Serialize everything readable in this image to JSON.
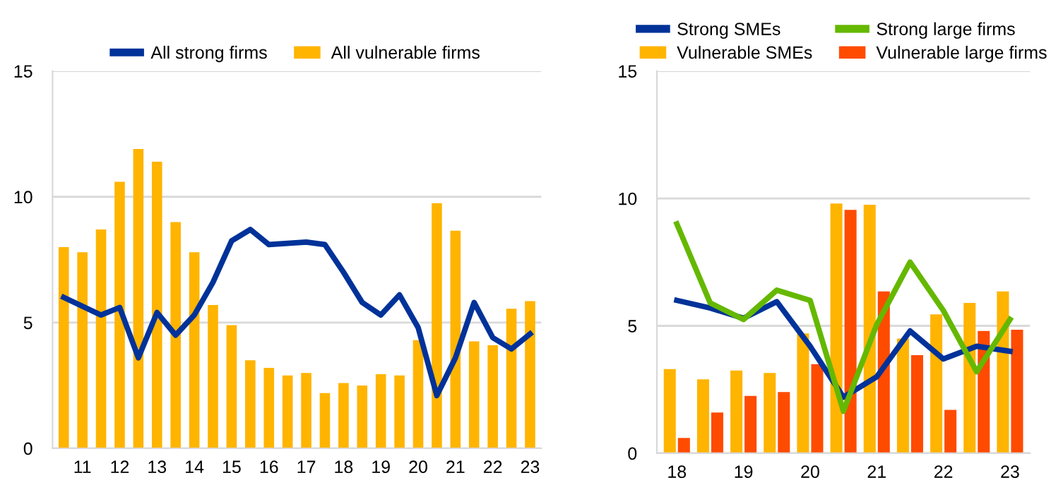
{
  "chart_data": [
    {
      "type": "bar",
      "categories": [
        null,
        "11",
        null,
        "12",
        null,
        "13",
        null,
        "14",
        null,
        "15",
        null,
        "16",
        null,
        "17",
        null,
        "18",
        null,
        "19",
        null,
        "20",
        null,
        "21",
        null,
        "22",
        null,
        "23"
      ],
      "series": [
        {
          "name": "All strong firms",
          "type": "line",
          "color": "#003299",
          "values": [
            6.0,
            5.65,
            5.3,
            5.6,
            3.6,
            5.4,
            4.5,
            5.3,
            6.6,
            8.25,
            8.7,
            8.1,
            8.15,
            8.2,
            8.1,
            7.0,
            5.8,
            5.3,
            6.1,
            4.8,
            2.1,
            3.6,
            5.8,
            4.4,
            3.95,
            4.55
          ]
        },
        {
          "name": "All vulnerable firms",
          "color": "#ffb400",
          "values": [
            8.0,
            7.8,
            8.7,
            10.6,
            11.9,
            11.4,
            9.0,
            7.8,
            5.7,
            4.9,
            3.5,
            3.2,
            2.9,
            3.0,
            2.2,
            2.6,
            2.5,
            2.95,
            2.9,
            4.3,
            9.75,
            8.65,
            4.25,
            4.1,
            5.55,
            5.85
          ]
        }
      ],
      "ylim": [
        0,
        15
      ],
      "yticks": [
        0,
        5,
        10,
        15
      ],
      "grid": "y",
      "legend": "top"
    },
    {
      "type": "bar",
      "categories": [
        "18",
        null,
        "19",
        null,
        "20",
        null,
        "21",
        null,
        "22",
        null,
        "23"
      ],
      "series": [
        {
          "name": "Strong SMEs",
          "type": "line",
          "color": "#003299",
          "values": [
            6.0,
            5.7,
            5.3,
            5.95,
            4.2,
            2.2,
            3.0,
            4.8,
            3.7,
            4.2,
            4.0
          ]
        },
        {
          "name": "Strong large firms",
          "type": "line",
          "color": "#65b800",
          "values": [
            9.0,
            5.9,
            5.25,
            6.4,
            6.0,
            1.65,
            5.05,
            7.5,
            5.6,
            3.2,
            5.25
          ]
        },
        {
          "name": "Vulnerable SMEs",
          "color": "#ffb400",
          "values": [
            3.3,
            2.9,
            3.25,
            3.15,
            4.7,
            9.8,
            9.75,
            4.5,
            5.45,
            5.9,
            6.35
          ]
        },
        {
          "name": "Vulnerable large firms",
          "color": "#ff4b00",
          "values": [
            0.6,
            1.6,
            2.25,
            2.4,
            3.5,
            9.55,
            6.35,
            3.85,
            1.7,
            4.8,
            4.85
          ]
        }
      ],
      "ylim": [
        0,
        15
      ],
      "yticks": [
        0,
        5,
        10,
        15
      ],
      "grid": "y",
      "legend": "top"
    }
  ]
}
